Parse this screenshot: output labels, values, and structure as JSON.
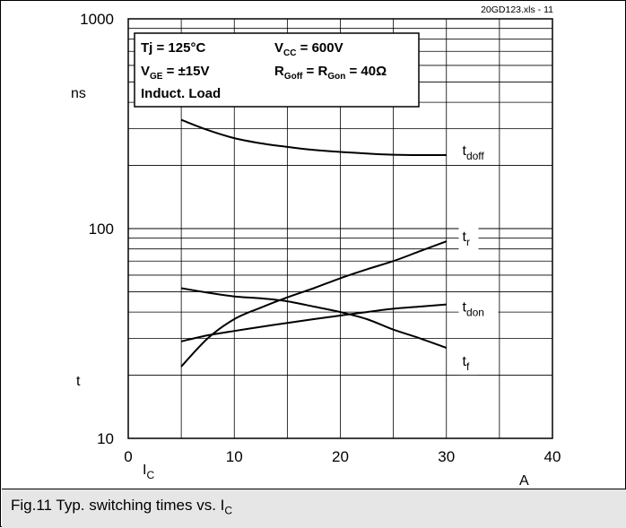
{
  "chart_data": {
    "type": "line",
    "source_label": "20GD123.xls - 11",
    "caption": "Fig.11 Typ. switching times vs. I",
    "caption_sub": "C",
    "xlabel": "I",
    "xlabel_sub": "C",
    "xunit": "A",
    "yunit": "ns",
    "ylabel": "t",
    "xlim": [
      0,
      40
    ],
    "ylim": [
      10,
      1000
    ],
    "yscale": "log",
    "grid": true,
    "x_ticks": [
      "0",
      "10",
      "20",
      "30",
      "40"
    ],
    "y_ticks": [
      "10",
      "100",
      "1000"
    ],
    "conditions": [
      {
        "name": "Tj = 125°C"
      },
      {
        "name": "V",
        "sub": "CC",
        "rest": " = 600V"
      },
      {
        "name": "V",
        "sub": "GE",
        "rest": " = ±15V"
      },
      {
        "name": "R",
        "sub": "Goff",
        "rest": " = R",
        "sub2": "Gon",
        "rest2": "  = 40Ω"
      },
      {
        "name": "Induct. Load"
      }
    ],
    "series": [
      {
        "name": "t",
        "sub": "doff",
        "x": [
          5,
          7.5,
          10,
          12.5,
          15,
          17.5,
          20,
          22.5,
          25,
          27.5,
          30
        ],
        "values": [
          330,
          295,
          270,
          255,
          245,
          237,
          232,
          228,
          225,
          224,
          224
        ]
      },
      {
        "name": "t",
        "sub": "r",
        "x": [
          5,
          7.5,
          10,
          12.5,
          15,
          17.5,
          20,
          22.5,
          25,
          27.5,
          30
        ],
        "values": [
          22,
          30,
          37,
          42,
          47,
          52,
          58,
          64,
          70,
          78,
          87
        ]
      },
      {
        "name": "t",
        "sub": "don",
        "x": [
          5,
          7.5,
          10,
          12.5,
          15,
          17.5,
          20,
          22.5,
          25,
          27.5,
          30
        ],
        "values": [
          29,
          31,
          32.5,
          34,
          35.5,
          37,
          38.5,
          40,
          41.5,
          42.5,
          43.5
        ]
      },
      {
        "name": "t",
        "sub": "f",
        "x": [
          5,
          7.5,
          10,
          12.5,
          15,
          17.5,
          20,
          22.5,
          25,
          27.5,
          30
        ],
        "values": [
          52,
          49.5,
          47.5,
          46.5,
          45,
          42.5,
          40,
          37,
          33,
          30,
          27
        ]
      }
    ]
  }
}
